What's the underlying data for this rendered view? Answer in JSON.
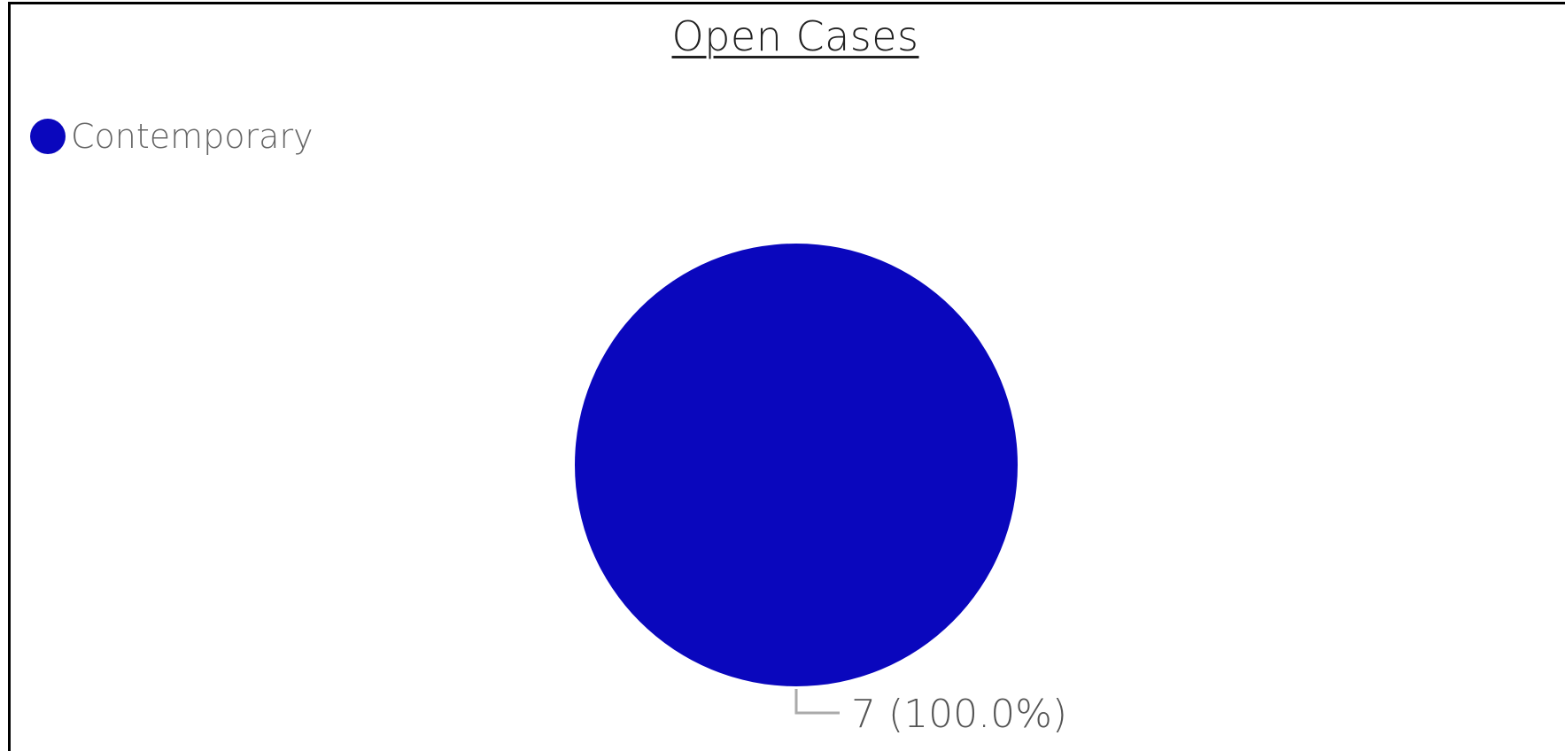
{
  "chart_data": {
    "type": "pie",
    "title": "Open Cases",
    "legend": {
      "position": "top-left",
      "entries": [
        {
          "label": "Contemporary",
          "color": "#0a07bd"
        }
      ]
    },
    "slices": [
      {
        "label": "Contemporary",
        "value": 7,
        "percent": 100.0,
        "color": "#0a07bd",
        "data_label": "7 (100.0%)"
      }
    ]
  },
  "colors": {
    "slice": "#0a07bd",
    "leader_line": "#aaaaaa"
  }
}
